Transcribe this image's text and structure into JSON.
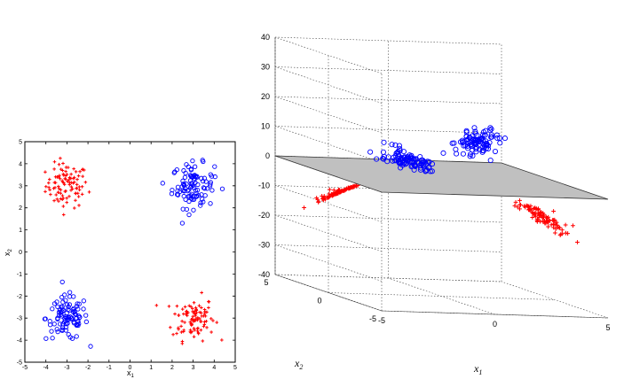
{
  "chart_data": [
    {
      "type": "scatter",
      "xlim": [
        -5,
        5
      ],
      "ylim": [
        -5,
        5
      ],
      "xticks": [
        -5,
        -4,
        -3,
        -2,
        -1,
        0,
        1,
        2,
        3,
        4,
        5
      ],
      "yticks": [
        -5,
        -4,
        -3,
        -2,
        -1,
        0,
        1,
        2,
        3,
        4,
        5
      ],
      "xlabel": "x",
      "xlabel_sub": "1",
      "ylabel": "x",
      "ylabel_sub": "2",
      "grid": false,
      "series": [
        {
          "marker": "+",
          "color": "#ff0000",
          "clusters": [
            {
              "center": [
                -3.0,
                3.0
              ],
              "spread": 0.5,
              "n": 100
            },
            {
              "center": [
                3.0,
                -3.0
              ],
              "spread": 0.5,
              "n": 100
            }
          ]
        },
        {
          "marker": "o",
          "color": "#0000ff",
          "clusters": [
            {
              "center": [
                3.0,
                3.0
              ],
              "spread": 0.5,
              "n": 100
            },
            {
              "center": [
                -3.0,
                -3.0
              ],
              "spread": 0.5,
              "n": 100
            }
          ]
        }
      ]
    },
    {
      "type": "scatter",
      "projection": "3d",
      "xlim": [
        -5,
        5
      ],
      "ylim": [
        -5,
        5
      ],
      "zlim": [
        -40,
        40
      ],
      "xticks": [
        -5,
        0,
        5
      ],
      "yticks": [
        -5,
        0,
        5
      ],
      "zticks": [
        40,
        30,
        20,
        10,
        0,
        -10,
        -20,
        -30,
        -40
      ],
      "xlabel": "x",
      "xlabel_sub": "1",
      "ylabel": "x",
      "ylabel_sub": "2",
      "grid": true,
      "z_of_points": "x1 * x2",
      "plane_z": 0,
      "plane_color": "#c0c0c0",
      "series": [
        {
          "marker": "+",
          "color": "#ff0000",
          "clusters": [
            {
              "center": [
                -3.0,
                3.0
              ],
              "spread": 0.5,
              "n": 100
            },
            {
              "center": [
                3.0,
                -3.0
              ],
              "spread": 0.5,
              "n": 100
            }
          ]
        },
        {
          "marker": "o",
          "color": "#0000ff",
          "clusters": [
            {
              "center": [
                3.0,
                3.0
              ],
              "spread": 0.5,
              "n": 100
            },
            {
              "center": [
                -3.0,
                -3.0
              ],
              "spread": 0.5,
              "n": 100
            }
          ]
        }
      ]
    }
  ]
}
